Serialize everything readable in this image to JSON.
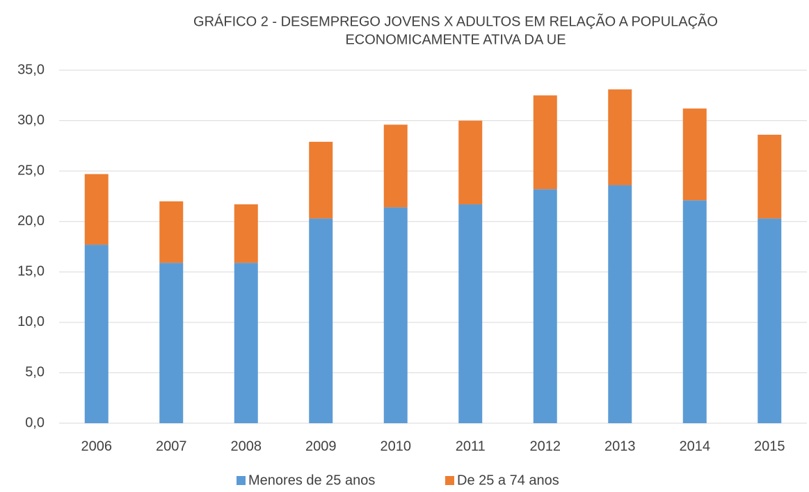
{
  "chart_data": {
    "type": "stacked_bar",
    "title": [
      "GRÁFICO 2 - DESEMPREGO JOVENS X ADULTOS EM RELAÇÃO A POPULAÇÃO",
      "ECONOMICAMENTE  ATIVA DA UE"
    ],
    "categories": [
      "2006",
      "2007",
      "2008",
      "2009",
      "2010",
      "2011",
      "2012",
      "2013",
      "2014",
      "2015"
    ],
    "series": [
      {
        "name": "Menores de 25 anos",
        "color": "#5b9bd5",
        "values": [
          17.7,
          15.9,
          15.9,
          20.3,
          21.4,
          21.7,
          23.2,
          23.6,
          22.1,
          20.3
        ]
      },
      {
        "name": "De 25 a 74 anos",
        "color": "#ed7d31",
        "values": [
          7.0,
          6.1,
          5.8,
          7.6,
          8.2,
          8.3,
          9.3,
          9.5,
          9.1,
          8.3
        ]
      }
    ],
    "ylim": [
      0,
      35
    ],
    "yticks": [
      {
        "value": 0,
        "label": "0,0"
      },
      {
        "value": 5,
        "label": "5,0"
      },
      {
        "value": 10,
        "label": "10,0"
      },
      {
        "value": 15,
        "label": "15,0"
      },
      {
        "value": 20,
        "label": "20,0"
      },
      {
        "value": 25,
        "label": "25,0"
      },
      {
        "value": 30,
        "label": "30,0"
      },
      {
        "value": 35,
        "label": "35,0"
      }
    ],
    "grid": true,
    "legend": "bottom"
  }
}
